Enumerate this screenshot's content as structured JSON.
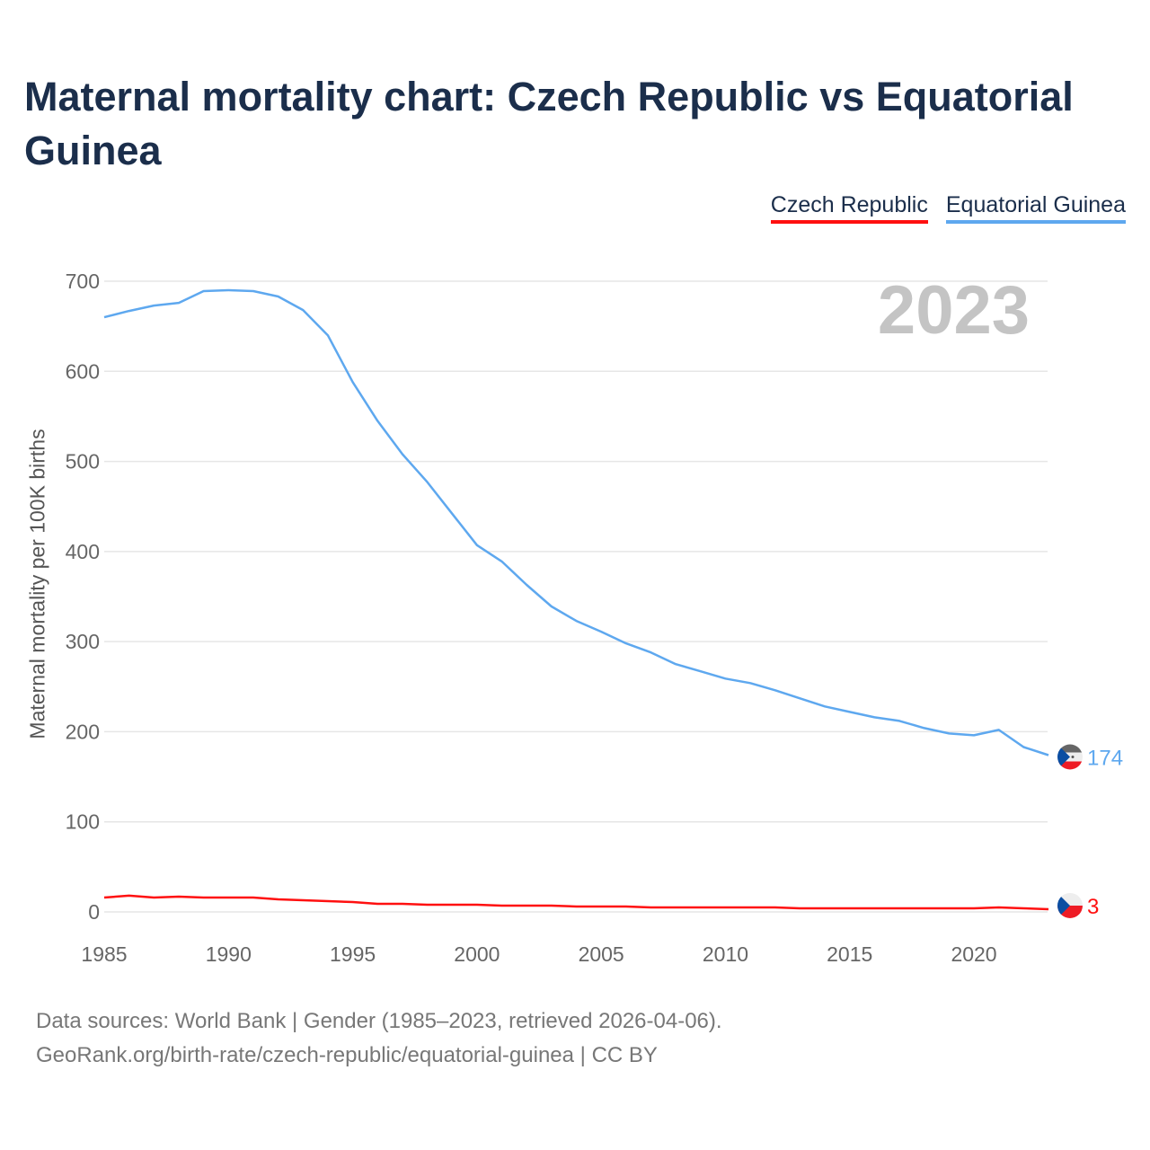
{
  "title": "Maternal mortality chart: Czech Republic vs Equatorial Guinea",
  "year_watermark": "2023",
  "source_line1": "Data sources: World Bank | Gender (1985–2023, retrieved 2026-04-06).",
  "source_line2": "GeoRank.org/birth-rate/czech-republic/equatorial-guinea | CC BY",
  "chart_data": {
    "type": "line",
    "title": "Maternal mortality chart: Czech Republic vs Equatorial Guinea",
    "xlabel": "",
    "ylabel": "Maternal mortality per 100K births",
    "xlim": [
      1985,
      2023
    ],
    "ylim": [
      0,
      700
    ],
    "xticks": [
      1985,
      1990,
      1995,
      2000,
      2005,
      2010,
      2015,
      2020
    ],
    "yticks": [
      0,
      100,
      200,
      300,
      400,
      500,
      600,
      700
    ],
    "grid": true,
    "legend_position": "top-right",
    "x": [
      1985,
      1986,
      1987,
      1988,
      1989,
      1990,
      1991,
      1992,
      1993,
      1994,
      1995,
      1996,
      1997,
      1998,
      1999,
      2000,
      2001,
      2002,
      2003,
      2004,
      2005,
      2006,
      2007,
      2008,
      2009,
      2010,
      2011,
      2012,
      2013,
      2014,
      2015,
      2016,
      2017,
      2018,
      2019,
      2020,
      2021,
      2022,
      2023
    ],
    "series": [
      {
        "name": "Czech Republic",
        "color": "#ff1010",
        "end_label": "3",
        "values": [
          16,
          18,
          16,
          17,
          16,
          16,
          16,
          14,
          13,
          12,
          11,
          9,
          9,
          8,
          8,
          8,
          7,
          7,
          7,
          6,
          6,
          6,
          5,
          5,
          5,
          5,
          5,
          5,
          4,
          4,
          4,
          4,
          4,
          4,
          4,
          4,
          5,
          4,
          3
        ]
      },
      {
        "name": "Equatorial Guinea",
        "color": "#5ea8ef",
        "end_label": "174",
        "values": [
          660,
          667,
          673,
          676,
          689,
          690,
          689,
          683,
          668,
          640,
          588,
          545,
          508,
          477,
          442,
          407,
          389,
          363,
          339,
          323,
          311,
          298,
          288,
          275,
          267,
          259,
          254,
          246,
          237,
          228,
          222,
          216,
          212,
          204,
          198,
          196,
          202,
          183,
          174
        ]
      }
    ]
  }
}
